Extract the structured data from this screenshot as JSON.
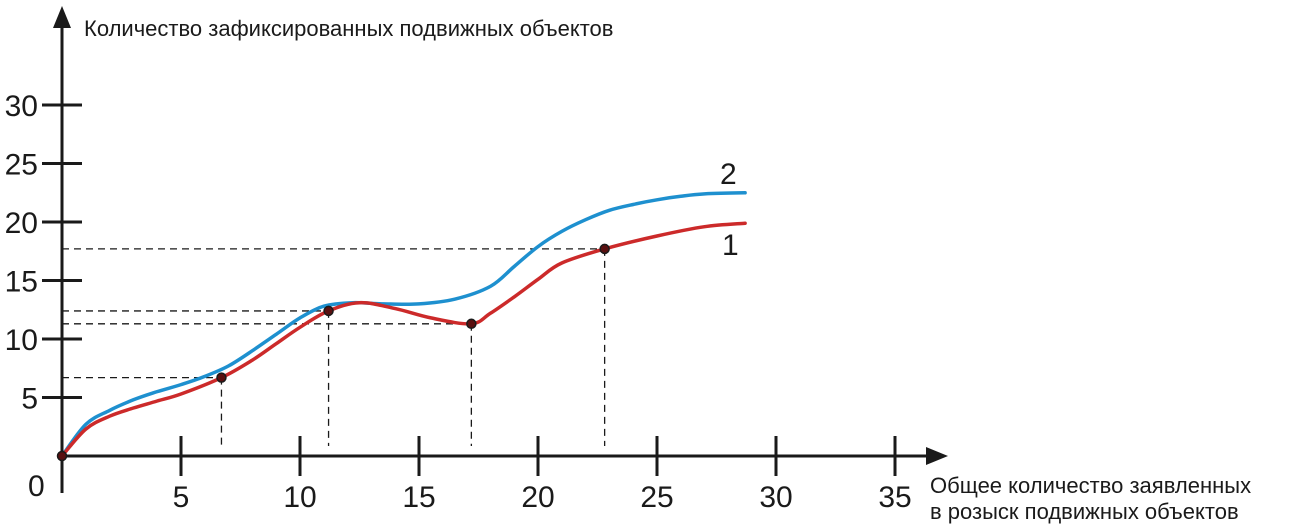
{
  "chart_data": {
    "type": "line",
    "ylabel": "Количество зафиксированных подвижных объектов",
    "xlabel_lines": [
      "Общее количество заявленных",
      "в розыск подвижных объектов"
    ],
    "origin_label": "0",
    "xlim": [
      0,
      37
    ],
    "ylim": [
      0,
      37
    ],
    "x_ticks": [
      5,
      10,
      15,
      20,
      25,
      30,
      35
    ],
    "y_ticks": [
      5,
      10,
      15,
      20,
      25,
      30
    ],
    "grid": false,
    "series": [
      {
        "name": "1",
        "color": "#cc2a2a",
        "x": [
          0,
          1,
          2,
          3,
          4,
          5,
          6.7,
          8,
          9,
          10,
          11.2,
          12.5,
          14,
          15.5,
          17.2,
          18,
          19,
          20,
          21,
          22.8,
          25,
          27,
          28.7
        ],
        "y": [
          0,
          2.3,
          3.4,
          4.1,
          4.7,
          5.3,
          6.7,
          8.2,
          9.6,
          11,
          12.4,
          13.1,
          12.6,
          11.8,
          11.3,
          12.2,
          13.6,
          15.1,
          16.5,
          17.7,
          18.8,
          19.6,
          19.9
        ]
      },
      {
        "name": "2",
        "color": "#1e90cf",
        "x": [
          0,
          1,
          2,
          3,
          4,
          5,
          6,
          7,
          8,
          9,
          10,
          11,
          12.2,
          13.5,
          15,
          16.5,
          18,
          19,
          20,
          21,
          22,
          23,
          24,
          25,
          26,
          27,
          28.7
        ],
        "y": [
          0,
          2.7,
          3.9,
          4.8,
          5.5,
          6.1,
          6.8,
          7.7,
          9.0,
          10.4,
          11.8,
          12.8,
          13.1,
          13.0,
          13.0,
          13.4,
          14.5,
          16.2,
          17.9,
          19.2,
          20.2,
          21.0,
          21.5,
          21.9,
          22.2,
          22.4,
          22.5
        ]
      }
    ],
    "marked_points": [
      {
        "x": 0,
        "y": 0
      },
      {
        "x": 6.7,
        "y": 6.7
      },
      {
        "x": 11.2,
        "y": 12.4
      },
      {
        "x": 17.2,
        "y": 11.3
      },
      {
        "x": 22.8,
        "y": 17.7
      }
    ]
  }
}
